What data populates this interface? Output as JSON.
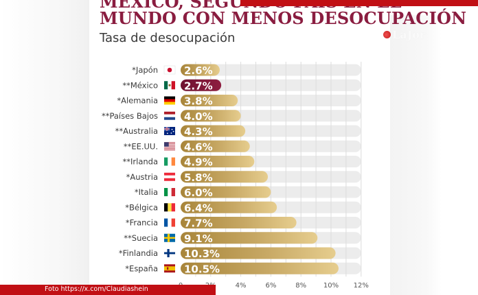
{
  "header": {
    "title_line1": "MÉXICO, SEGUNDO PAÍS EN EL",
    "title_line2": "MUNDO CON MENOS DESOCUPACIÓN",
    "subtitle": "Tasa de desocupación",
    "logo_text": "LaJor"
  },
  "footer": {
    "credit": "Foto https://x.com/Claudiashein"
  },
  "colors": {
    "title": "#8a1d40",
    "highlight": "#7d1634",
    "bar_dark": "#a8853a",
    "bar_light": "#e6cd8e",
    "track": "#ececec",
    "banner": "#c10f14"
  },
  "chart_data": {
    "type": "bar",
    "orientation": "horizontal",
    "title": "Tasa de desocupación",
    "xlabel": "",
    "ylabel": "",
    "xlim": [
      0,
      12
    ],
    "grid": true,
    "categories": [
      "*Japón",
      "**México",
      "*Alemania",
      "**Países Bajos",
      "**Australia",
      "**EE.UU.",
      "**Irlanda",
      "*Austria",
      "*Italia",
      "*Bélgica",
      "*Francia",
      "**Suecia",
      "*Finlandia",
      "*España"
    ],
    "flags": [
      "japan-flag",
      "mexico-flag",
      "germany-flag",
      "netherlands-flag",
      "australia-flag",
      "usa-flag",
      "ireland-flag",
      "austria-flag",
      "italy-flag",
      "belgium-flag",
      "france-flag",
      "sweden-flag",
      "finland-flag",
      "spain-flag"
    ],
    "values": [
      2.6,
      2.7,
      3.8,
      4.0,
      4.3,
      4.6,
      4.9,
      5.8,
      6.0,
      6.4,
      7.7,
      9.1,
      10.3,
      10.5
    ],
    "labels": [
      "2.6%",
      "2.7%",
      "3.8%",
      "4.0%",
      "4.3%",
      "4.6%",
      "4.9%",
      "5.8%",
      "6.0%",
      "6.4%",
      "7.7%",
      "9.1%",
      "10.3%",
      "10.5%"
    ],
    "highlight_index": 1,
    "x_ticks": [
      0,
      2,
      4,
      6,
      8,
      10,
      12
    ],
    "x_tick_labels": [
      "0",
      "2%",
      "4%",
      "6%",
      "8%",
      "10%",
      "12%"
    ]
  }
}
